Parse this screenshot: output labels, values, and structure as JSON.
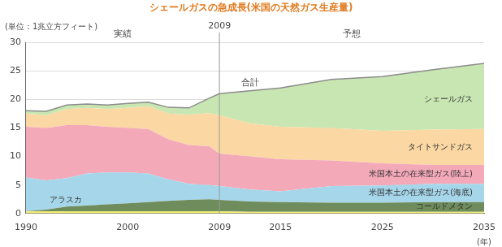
{
  "chart_data": {
    "type": "area",
    "title": "シェールガスの急成長(米国の天然ガス生産量)",
    "y_label": "(単位：1兆立方フィート)",
    "x_label": "(年)",
    "stacked": true,
    "grid": true,
    "x": [
      1990,
      1992,
      1994,
      1996,
      1998,
      2000,
      2002,
      2004,
      2006,
      2008,
      2009,
      2012,
      2015,
      2020,
      2025,
      2030,
      2035
    ],
    "xlim": [
      1990,
      2035
    ],
    "xticks": [
      1990,
      2000,
      2009,
      2015,
      2025,
      2035
    ],
    "ylim": [
      0,
      30
    ],
    "yticks": [
      0,
      5,
      10,
      15,
      20,
      25,
      30
    ],
    "series": [
      {
        "name": "アラスカ",
        "color": "#f2ec7a",
        "values": [
          0.4,
          0.4,
          0.4,
          0.4,
          0.4,
          0.4,
          0.4,
          0.4,
          0.4,
          0.4,
          0.4,
          0.3,
          0.3,
          0.3,
          0.3,
          0.3,
          0.3
        ]
      },
      {
        "name": "コールドメタン",
        "color": "#6f8c5c",
        "values": [
          0,
          0.3,
          0.8,
          1.0,
          1.2,
          1.4,
          1.6,
          1.8,
          2.0,
          2.1,
          2.0,
          1.8,
          1.7,
          1.6,
          1.6,
          1.7,
          1.7
        ]
      },
      {
        "name": "米国本土の在来型ガス(海底)",
        "color": "#a6d6ea",
        "values": [
          5.9,
          5.1,
          5.0,
          5.6,
          5.6,
          5.4,
          5.0,
          3.8,
          2.8,
          2.5,
          2.4,
          2.1,
          1.9,
          2.9,
          3.0,
          3.2,
          3.2
        ]
      },
      {
        "name": "米国本土の在来型ガス(陸上)",
        "color": "#f4a9b9",
        "values": [
          8.9,
          9.2,
          9.3,
          8.5,
          8.0,
          7.8,
          7.8,
          7.0,
          6.8,
          6.8,
          5.7,
          5.8,
          5.6,
          4.5,
          3.9,
          3.3,
          3.3
        ]
      },
      {
        "name": "タイトサンドガス",
        "color": "#fbd8a3",
        "values": [
          2.3,
          2.2,
          2.8,
          3.0,
          3.1,
          3.5,
          4.0,
          4.5,
          5.3,
          5.8,
          6.7,
          5.8,
          5.7,
          5.7,
          5.7,
          6.2,
          6.3
        ]
      },
      {
        "name": "シェールガス",
        "color": "#c8e6b2",
        "values": [
          0.5,
          0.7,
          0.7,
          0.7,
          0.7,
          0.8,
          0.7,
          1.1,
          1.2,
          2.6,
          3.8,
          5.7,
          6.8,
          8.5,
          9.5,
          10.5,
          11.5
        ]
      }
    ],
    "annotations": {
      "actual": "実績",
      "forecast": "予想",
      "divider": {
        "x": 2009,
        "label": "2009"
      },
      "total": "合計"
    }
  }
}
